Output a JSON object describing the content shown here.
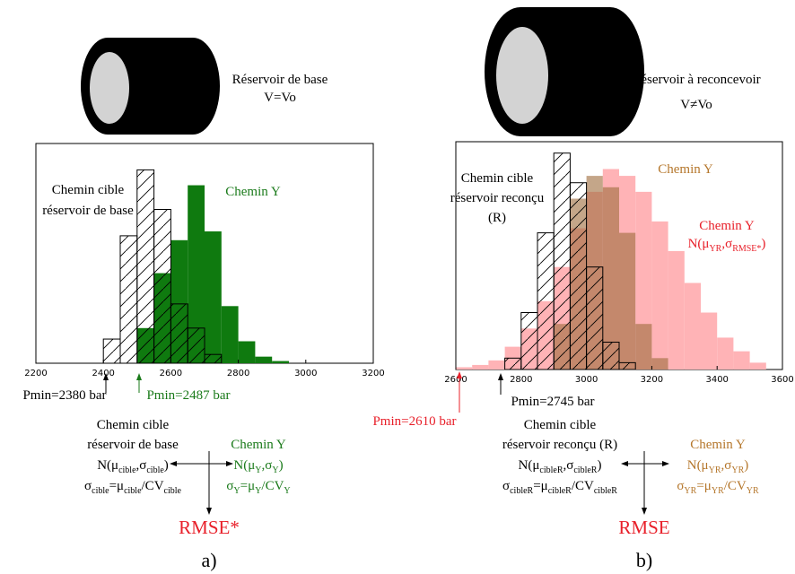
{
  "chart_data": [
    {
      "type": "histogram",
      "xlim": [
        2200,
        3200
      ],
      "xticks": [
        2200,
        2400,
        2600,
        2800,
        3000,
        3200
      ],
      "ylim": [
        0,
        100
      ],
      "bins": [
        2400,
        2450,
        2500,
        2550,
        2600,
        2650,
        2700,
        2750,
        2800,
        2850,
        2900,
        2950
      ],
      "series": [
        {
          "color": "#0f7a0f",
          "opacity": 1,
          "hatch": false,
          "values": [
            0,
            0,
            16,
            41,
            56,
            81,
            60,
            26,
            10,
            3,
            1
          ]
        },
        {
          "color": "#000000",
          "opacity": 1,
          "hatch": true,
          "values": [
            11,
            58,
            88,
            70,
            27,
            16,
            4,
            0,
            0,
            0,
            0
          ]
        }
      ]
    },
    {
      "type": "histogram",
      "xlim": [
        2600,
        3600
      ],
      "xticks": [
        2600,
        2800,
        3000,
        3200,
        3400,
        3600
      ],
      "ylim": [
        0,
        100
      ],
      "bins": [
        2600,
        2650,
        2700,
        2750,
        2800,
        2850,
        2900,
        2950,
        3000,
        3050,
        3100,
        3150,
        3200,
        3250,
        3300,
        3350,
        3400,
        3450,
        3500,
        3550
      ],
      "series": [
        {
          "color": "#ffb3b6",
          "opacity": 1,
          "hatch": false,
          "values": [
            1,
            2,
            4,
            10,
            18,
            30,
            45,
            62,
            78,
            88,
            85,
            78,
            65,
            52,
            38,
            25,
            14,
            8,
            3
          ]
        },
        {
          "color": "#9c6a3a",
          "opacity": 0.6,
          "hatch": false,
          "values": [
            0,
            0,
            0,
            0,
            0,
            0,
            20,
            75,
            85,
            80,
            60,
            20,
            5,
            0,
            0,
            0,
            0,
            0,
            0
          ]
        },
        {
          "color": "#000000",
          "opacity": 1,
          "hatch": true,
          "values": [
            0,
            0,
            0,
            5,
            25,
            60,
            95,
            82,
            45,
            12,
            3,
            0,
            0,
            0,
            0,
            0,
            0,
            0,
            0
          ]
        }
      ]
    }
  ],
  "left": {
    "tank": [
      "Réservoir de base",
      "V=Vo"
    ],
    "target_label": [
      "Chemin cible",
      "réservoir de base"
    ],
    "y_label": "Chemin Y",
    "pmin_target": "Pmin=2380 bar",
    "pmin_y": "Pmin=2487 bar",
    "target_model": [
      "Chemin cible",
      "réservoir de base"
    ],
    "target_n": [
      "N(μ",
      "cible",
      ",σ",
      "cible",
      ")"
    ],
    "target_sigma": [
      "σ",
      "cible",
      "=μ",
      "cible",
      "/CV",
      "cible"
    ],
    "y_model": "Chemin Y",
    "y_n": [
      "N(μ",
      "Y",
      ",σ",
      "Y",
      ")"
    ],
    "y_sigma": [
      "σ",
      "Y",
      "=μ",
      "Y",
      "/CV",
      "Y"
    ],
    "result": "RMSE*",
    "panel": "a)"
  },
  "right": {
    "tank": [
      "Réservoir à reconcevoir",
      "V≠Vo"
    ],
    "target_label": [
      "Chemin cible",
      "réservoir reconçu",
      "(R)"
    ],
    "y_label": "Chemin Y",
    "y_red_label": "Chemin Y",
    "y_red_n": [
      "N(μ",
      "YR",
      ",σ",
      "RMSE*",
      ")"
    ],
    "pmin_y": "Pmin=2610 bar",
    "pmin_target": "Pmin=2745 bar",
    "target_model": [
      "Chemin cible",
      "réservoir reconçu (R)"
    ],
    "target_n": [
      "N(μ",
      "cibleR",
      ",σ",
      "cibleR",
      ")"
    ],
    "target_sigma": [
      "σ",
      "cibleR",
      "=μ",
      "cibleR",
      "/CV",
      "cibleR"
    ],
    "y_model": "Chemin Y",
    "y_n": [
      "N(μ",
      "YR",
      ",σ",
      "YR",
      ")"
    ],
    "y_sigma": [
      "σ",
      "YR",
      "=μ",
      "YR",
      "/CV",
      "YR"
    ],
    "result": "RMSE",
    "panel": "b)"
  }
}
